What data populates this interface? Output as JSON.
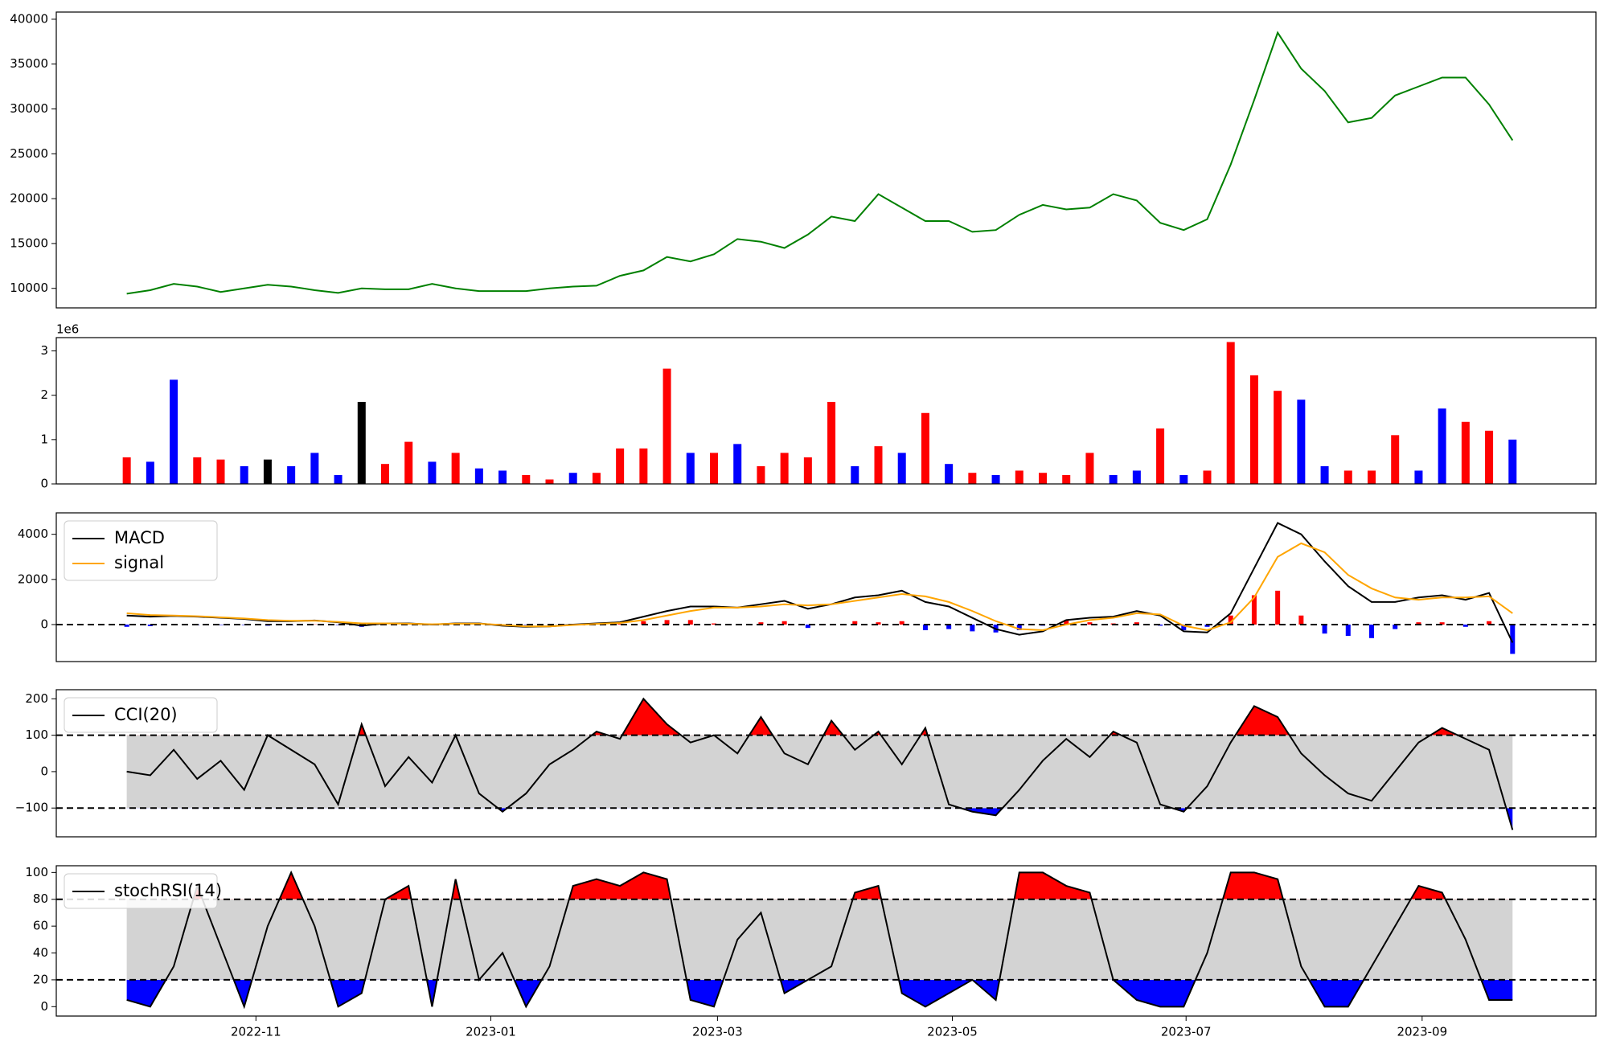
{
  "chart_data": [
    {
      "type": "line",
      "color": "#008000",
      "xlim": [
        -0.7,
        12.41
      ],
      "ylim": [
        7825,
        40800
      ],
      "yticks": [
        10000,
        15000,
        20000,
        25000,
        30000,
        35000,
        40000
      ],
      "x": [
        -0.1,
        0.1,
        0.3,
        0.5,
        0.7,
        0.9,
        1.1,
        1.3,
        1.5,
        1.7,
        1.9,
        2.1,
        2.3,
        2.5,
        2.7,
        2.9,
        3.1,
        3.3,
        3.5,
        3.7,
        3.9,
        4.1,
        4.3,
        4.5,
        4.7,
        4.9,
        5.1,
        5.3,
        5.5,
        5.7,
        5.9,
        6.1,
        6.3,
        6.5,
        6.7,
        6.9,
        7.1,
        7.3,
        7.5,
        7.7,
        7.9,
        8.1,
        8.3,
        8.5,
        8.7,
        8.9,
        9.1,
        9.3,
        9.5,
        9.7,
        9.9,
        10.1,
        10.3,
        10.5,
        10.7,
        10.9,
        11.1,
        11.3,
        11.5,
        11.7
      ],
      "values": [
        9400,
        9800,
        10500,
        10200,
        9600,
        10000,
        10400,
        10200,
        9800,
        9500,
        10000,
        9900,
        9900,
        10500,
        10000,
        9700,
        9700,
        9700,
        10000,
        10200,
        10300,
        11400,
        12000,
        13500,
        13000,
        13800,
        15500,
        15200,
        14500,
        16000,
        18000,
        17500,
        20500,
        19000,
        17500,
        17500,
        16300,
        16500,
        18200,
        19300,
        18800,
        19000,
        20500,
        19800,
        17300,
        16500,
        17700,
        23800,
        31000,
        38500,
        34500,
        32000,
        28500,
        29000,
        31500,
        32500,
        33500,
        33500,
        30500,
        26500
      ]
    },
    {
      "type": "bar",
      "offset_label": "1e6",
      "xlim": [
        -0.7,
        12.41
      ],
      "ylim": [
        0,
        3.3
      ],
      "yticks": [
        0,
        1,
        2,
        3
      ],
      "x": [
        -0.1,
        0.1,
        0.3,
        0.5,
        0.7,
        0.9,
        1.1,
        1.3,
        1.5,
        1.7,
        1.9,
        2.1,
        2.3,
        2.5,
        2.7,
        2.9,
        3.1,
        3.3,
        3.5,
        3.7,
        3.9,
        4.1,
        4.3,
        4.5,
        4.7,
        4.9,
        5.1,
        5.3,
        5.5,
        5.7,
        5.9,
        6.1,
        6.3,
        6.5,
        6.7,
        6.9,
        7.1,
        7.3,
        7.5,
        7.7,
        7.9,
        8.1,
        8.3,
        8.5,
        8.7,
        8.9,
        9.1,
        9.3,
        9.5,
        9.7,
        9.9,
        10.1,
        10.3,
        10.5,
        10.7,
        10.9,
        11.1,
        11.3,
        11.5,
        11.7
      ],
      "values": [
        0.6,
        0.5,
        2.35,
        0.6,
        0.55,
        0.4,
        0.55,
        0.4,
        0.7,
        0.2,
        1.85,
        0.45,
        0.95,
        0.5,
        0.7,
        0.35,
        0.3,
        0.2,
        0.1,
        0.25,
        0.25,
        0.8,
        0.8,
        2.6,
        0.7,
        0.7,
        0.9,
        0.4,
        0.7,
        0.6,
        1.85,
        0.4,
        0.85,
        0.7,
        1.6,
        0.45,
        0.25,
        0.2,
        0.3,
        0.25,
        0.2,
        0.7,
        0.2,
        0.3,
        1.25,
        0.2,
        0.3,
        3.2,
        2.45,
        2.1,
        1.9,
        0.4,
        0.3,
        0.3,
        1.1,
        0.3,
        1.7,
        1.4,
        1.2,
        1.0
      ],
      "colors": [
        "red",
        "blue",
        "blue",
        "red",
        "red",
        "blue",
        "black",
        "blue",
        "blue",
        "blue",
        "black",
        "red",
        "red",
        "blue",
        "red",
        "blue",
        "blue",
        "red",
        "red",
        "blue",
        "red",
        "red",
        "red",
        "red",
        "blue",
        "red",
        "blue",
        "red",
        "red",
        "red",
        "red",
        "blue",
        "red",
        "blue",
        "red",
        "blue",
        "red",
        "blue",
        "red",
        "red",
        "red",
        "red",
        "blue",
        "blue",
        "red",
        "blue",
        "red",
        "red",
        "red",
        "red",
        "blue",
        "blue",
        "red",
        "red",
        "red",
        "blue",
        "blue",
        "red",
        "red",
        "blue"
      ]
    },
    {
      "type": "line",
      "xlim": [
        -0.7,
        12.41
      ],
      "ylim": [
        -1640,
        4950
      ],
      "yticks": [
        0,
        2000,
        4000
      ],
      "hlines": [
        0
      ],
      "legend": "upper left",
      "x": [
        -0.1,
        0.1,
        0.3,
        0.5,
        0.7,
        0.9,
        1.1,
        1.3,
        1.5,
        1.7,
        1.9,
        2.1,
        2.3,
        2.5,
        2.7,
        2.9,
        3.1,
        3.3,
        3.5,
        3.7,
        3.9,
        4.1,
        4.3,
        4.5,
        4.7,
        4.9,
        5.1,
        5.3,
        5.5,
        5.7,
        5.9,
        6.1,
        6.3,
        6.5,
        6.7,
        6.9,
        7.1,
        7.3,
        7.5,
        7.7,
        7.9,
        8.1,
        8.3,
        8.5,
        8.7,
        8.9,
        9.1,
        9.3,
        9.5,
        9.7,
        9.9,
        10.1,
        10.3,
        10.5,
        10.7,
        10.9,
        11.1,
        11.3,
        11.5,
        11.7
      ],
      "histogram": {
        "pos_color": "red",
        "neg_color": "blue",
        "values": [
          -100,
          -70,
          -20,
          -20,
          -20,
          -20,
          -50,
          -20,
          10,
          -20,
          -100,
          0,
          10,
          -10,
          10,
          10,
          -30,
          -20,
          0,
          20,
          20,
          30,
          150,
          200,
          200,
          50,
          0,
          100,
          150,
          -150,
          0,
          150,
          100,
          150,
          -250,
          -200,
          -300,
          -350,
          -250,
          -50,
          200,
          100,
          50,
          100,
          -50,
          -250,
          -100,
          400,
          1300,
          1500,
          400,
          -400,
          -500,
          -600,
          -200,
          100,
          100,
          -100,
          150,
          -1300
        ]
      },
      "series": [
        {
          "name": "MACD",
          "color": "#000000",
          "values": [
            400,
            350,
            380,
            350,
            300,
            250,
            150,
            150,
            180,
            100,
            -50,
            50,
            50,
            0,
            50,
            50,
            -50,
            -100,
            -80,
            0,
            50,
            100,
            350,
            600,
            800,
            800,
            750,
            900,
            1050,
            700,
            900,
            1200,
            1300,
            1500,
            1000,
            800,
            300,
            -200,
            -450,
            -300,
            200,
            300,
            350,
            600,
            400,
            -300,
            -350,
            500,
            2500,
            4500,
            4000,
            2800,
            1700,
            1000,
            1000,
            1200,
            1300,
            1100,
            1400,
            -800
          ]
        },
        {
          "name": "signal",
          "color": "#ffa500",
          "values": [
            500,
            420,
            400,
            370,
            320,
            270,
            200,
            170,
            170,
            120,
            50,
            50,
            40,
            10,
            40,
            40,
            -20,
            -80,
            -80,
            -20,
            30,
            70,
            200,
            400,
            600,
            750,
            750,
            800,
            900,
            850,
            900,
            1050,
            1200,
            1350,
            1250,
            1000,
            600,
            150,
            -200,
            -250,
            0,
            200,
            300,
            500,
            450,
            -50,
            -250,
            100,
            1200,
            3000,
            3600,
            3200,
            2200,
            1600,
            1200,
            1100,
            1200,
            1200,
            1250,
            500
          ]
        }
      ]
    },
    {
      "type": "band",
      "xlim": [
        -0.7,
        12.41
      ],
      "ylim": [
        -179,
        225
      ],
      "yticks": [
        {
          "value": -100,
          "label": "−100"
        },
        0,
        100,
        200
      ],
      "thresholds": [
        -100,
        100
      ],
      "band_color": "#d3d3d3",
      "above_color": "red",
      "below_color": "blue",
      "legend": "upper left",
      "x": [
        -0.1,
        0.1,
        0.3,
        0.5,
        0.7,
        0.9,
        1.1,
        1.3,
        1.5,
        1.7,
        1.9,
        2.1,
        2.3,
        2.5,
        2.7,
        2.9,
        3.1,
        3.3,
        3.5,
        3.7,
        3.9,
        4.1,
        4.3,
        4.5,
        4.7,
        4.9,
        5.1,
        5.3,
        5.5,
        5.7,
        5.9,
        6.1,
        6.3,
        6.5,
        6.7,
        6.9,
        7.1,
        7.3,
        7.5,
        7.7,
        7.9,
        8.1,
        8.3,
        8.5,
        8.7,
        8.9,
        9.1,
        9.3,
        9.5,
        9.7,
        9.9,
        10.1,
        10.3,
        10.5,
        10.7,
        10.9,
        11.1,
        11.3,
        11.5,
        11.7
      ],
      "series": [
        {
          "name": "CCI(20)",
          "color": "#000000",
          "values": [
            0,
            -10,
            60,
            -20,
            30,
            -50,
            100,
            60,
            20,
            -90,
            130,
            -40,
            40,
            -30,
            100,
            -60,
            -110,
            -60,
            20,
            60,
            110,
            90,
            200,
            130,
            80,
            100,
            50,
            150,
            50,
            20,
            140,
            60,
            110,
            20,
            120,
            -90,
            -110,
            -120,
            -50,
            30,
            90,
            40,
            110,
            80,
            -90,
            -110,
            -40,
            80,
            180,
            150,
            50,
            -10,
            -60,
            -80,
            0,
            80,
            120,
            90,
            60,
            -160
          ]
        }
      ]
    },
    {
      "type": "band",
      "xlim": [
        -0.7,
        12.41
      ],
      "ylim": [
        -7,
        105
      ],
      "yticks": [
        0,
        20,
        40,
        60,
        80,
        100
      ],
      "xticks": [
        {
          "value": 1,
          "label": "2022-11"
        },
        {
          "value": 3.0,
          "label": "2023-01"
        },
        {
          "value": 4.93,
          "label": "2023-03"
        },
        {
          "value": 6.93,
          "label": "2023-05"
        },
        {
          "value": 8.92,
          "label": "2023-07"
        },
        {
          "value": 10.93,
          "label": "2023-09"
        }
      ],
      "thresholds": [
        20,
        80
      ],
      "band_color": "#d3d3d3",
      "above_color": "red",
      "below_color": "blue",
      "legend": "upper left",
      "x": [
        -0.1,
        0.1,
        0.3,
        0.5,
        0.7,
        0.9,
        1.1,
        1.3,
        1.5,
        1.7,
        1.9,
        2.1,
        2.3,
        2.5,
        2.7,
        2.9,
        3.1,
        3.3,
        3.5,
        3.7,
        3.9,
        4.1,
        4.3,
        4.5,
        4.7,
        4.9,
        5.1,
        5.3,
        5.5,
        5.7,
        5.9,
        6.1,
        6.3,
        6.5,
        6.7,
        6.9,
        7.1,
        7.3,
        7.5,
        7.7,
        7.9,
        8.1,
        8.3,
        8.5,
        8.7,
        8.9,
        9.1,
        9.3,
        9.5,
        9.7,
        9.9,
        10.1,
        10.3,
        10.5,
        10.7,
        10.9,
        11.1,
        11.3,
        11.5,
        11.7
      ],
      "series": [
        {
          "name": "stochRSI(14)",
          "color": "#000000",
          "values": [
            5,
            0,
            30,
            90,
            45,
            0,
            60,
            100,
            60,
            0,
            10,
            80,
            90,
            0,
            95,
            20,
            40,
            0,
            30,
            90,
            95,
            90,
            100,
            95,
            5,
            0,
            50,
            70,
            10,
            20,
            30,
            85,
            90,
            10,
            0,
            10,
            20,
            5,
            100,
            100,
            90,
            85,
            20,
            5,
            0,
            0,
            40,
            100,
            100,
            95,
            30,
            0,
            0,
            30,
            60,
            90,
            85,
            50,
            5,
            5
          ]
        }
      ]
    }
  ]
}
